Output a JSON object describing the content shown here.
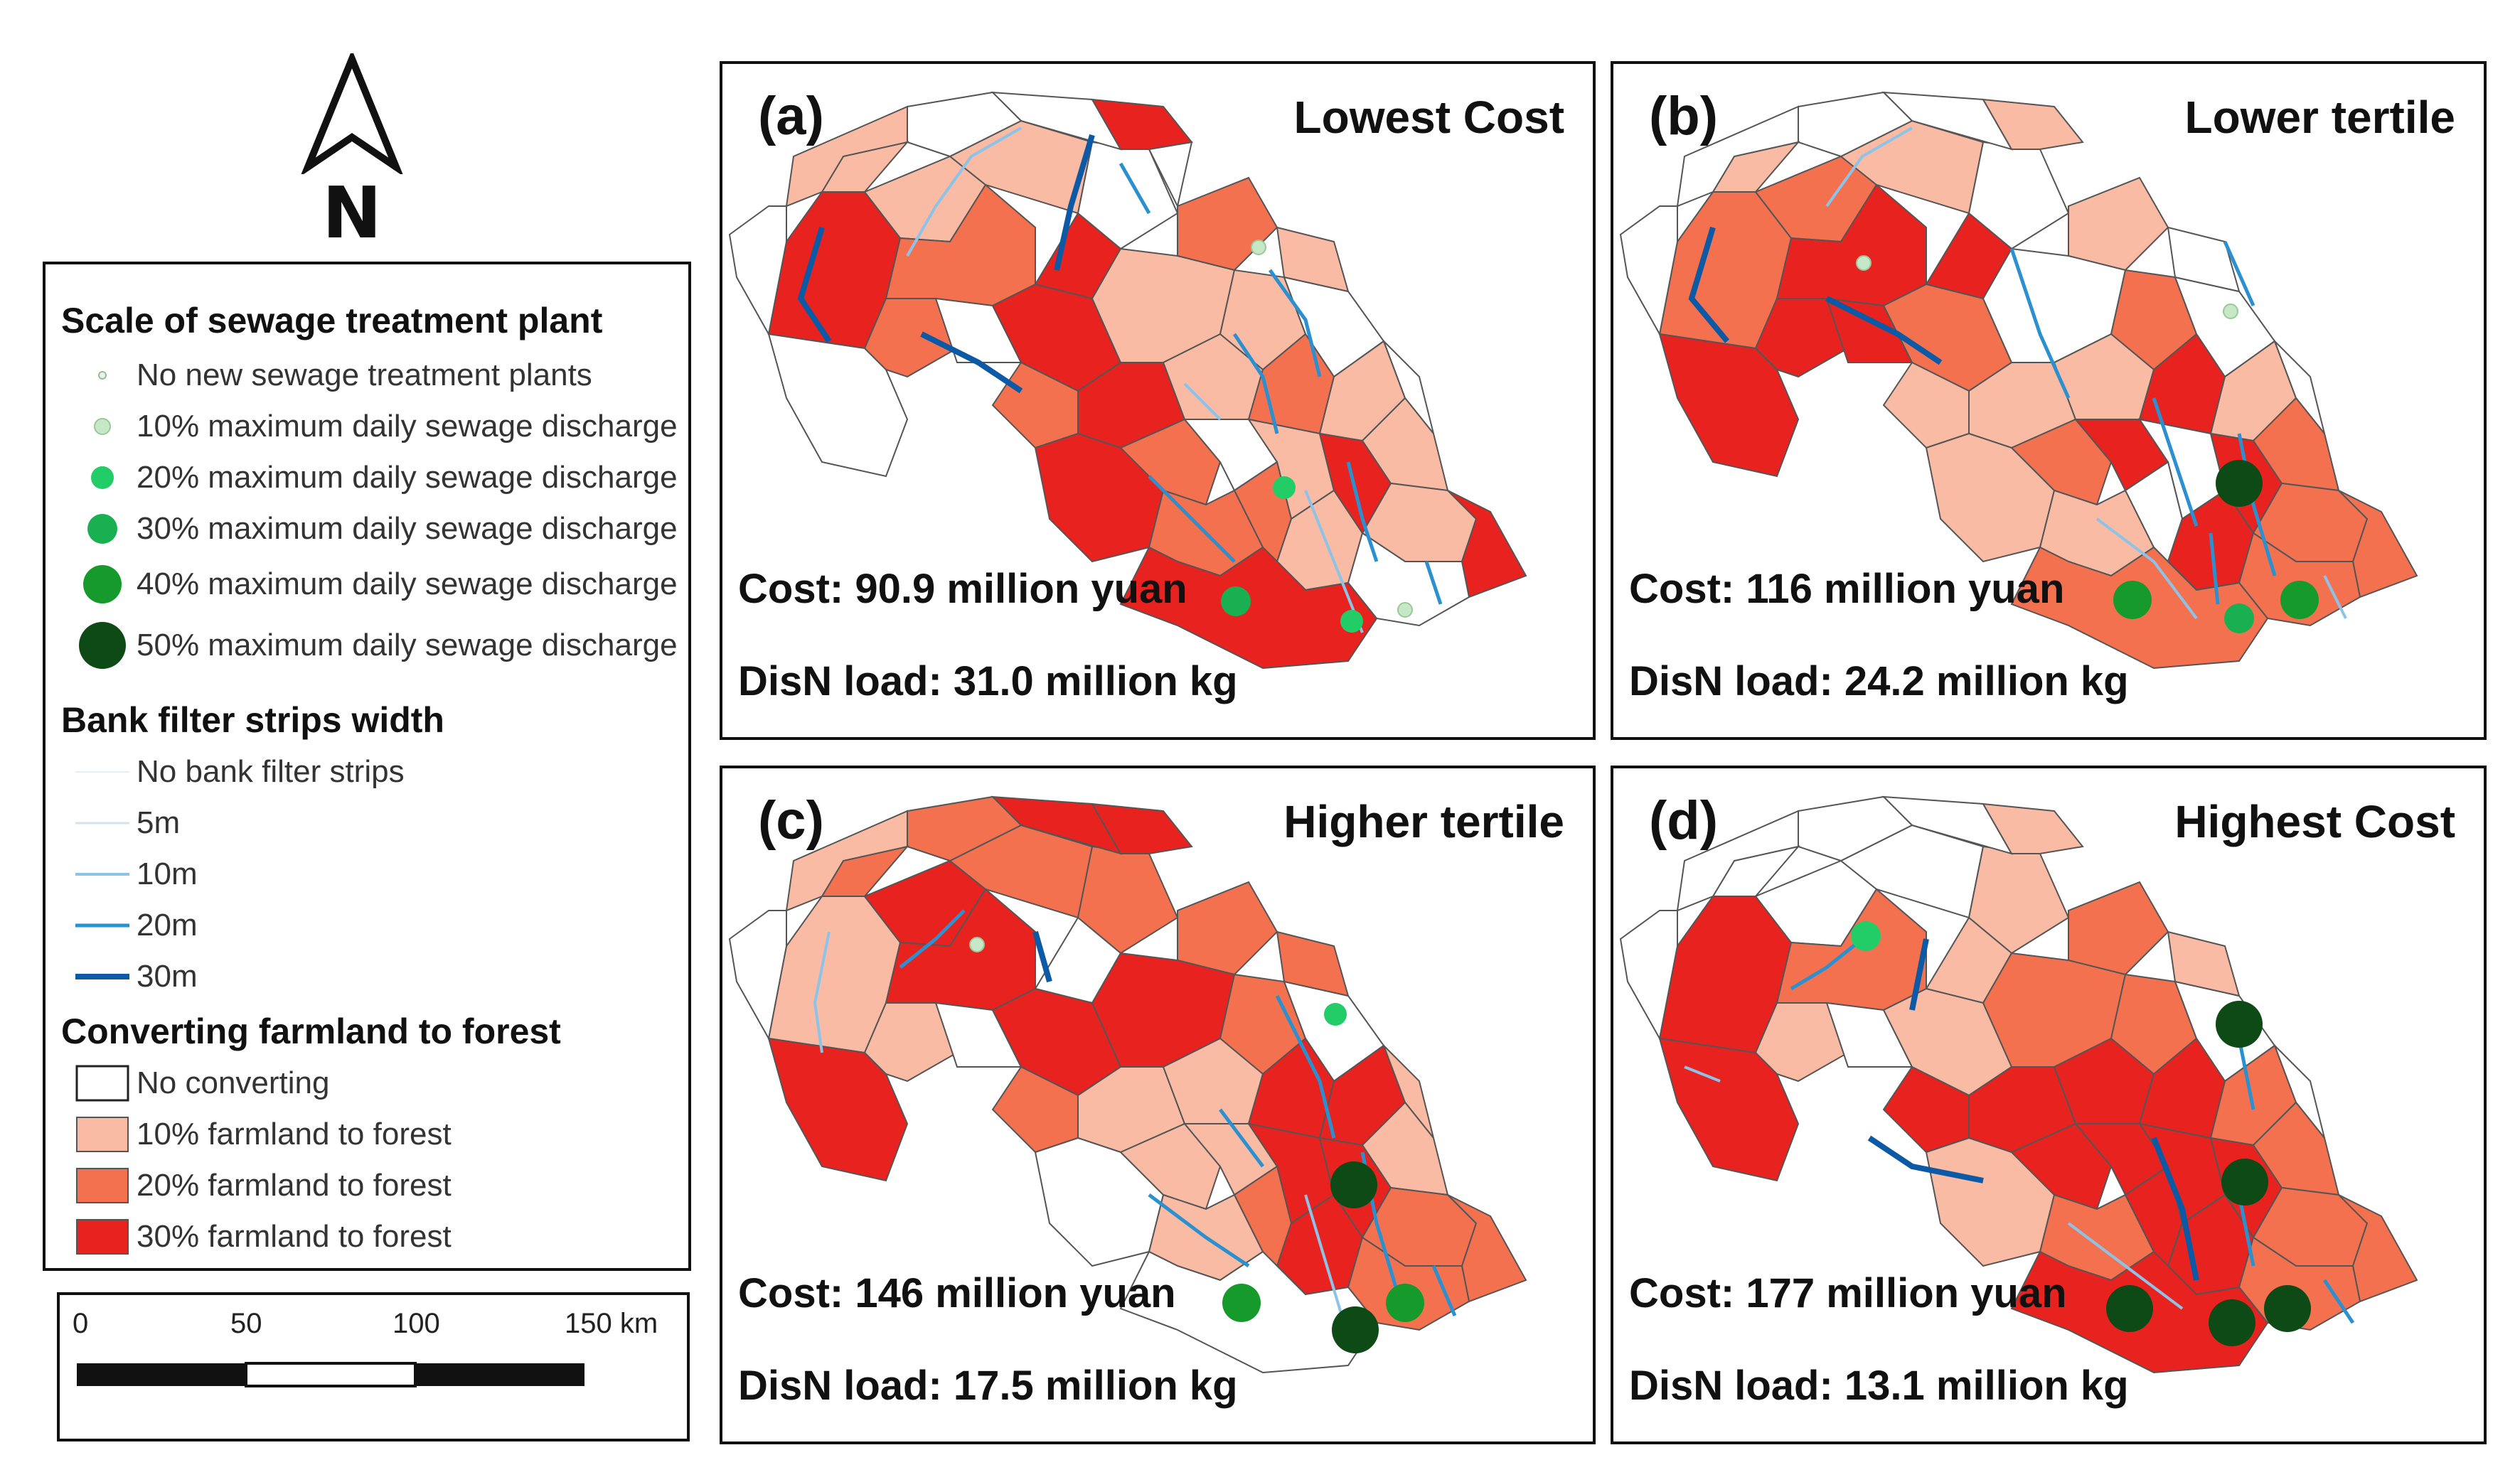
{
  "north_arrow": {
    "label": "N"
  },
  "legend": {
    "stp_title": "Scale of sewage treatment plant",
    "stp_items": [
      {
        "label": "No new sewage treatment plants",
        "color": "#e8f5e8"
      },
      {
        "label": "10% maximum daily sewage discharge",
        "color": "#c6e8c6"
      },
      {
        "label": "20% maximum daily sewage discharge",
        "color": "#22cc66"
      },
      {
        "label": "30% maximum daily sewage discharge",
        "color": "#18b050"
      },
      {
        "label": "40% maximum daily sewage discharge",
        "color": "#169a2c"
      },
      {
        "label": "50% maximum daily sewage discharge",
        "color": "#0d4a16"
      }
    ],
    "bfs_title": "Bank filter strips width",
    "bfs_items": [
      {
        "label": "No bank filter strips",
        "color": "#f1f6fb"
      },
      {
        "label": "5m",
        "color": "#cfe3f3"
      },
      {
        "label": "10m",
        "color": "#8cc3e8"
      },
      {
        "label": "20m",
        "color": "#2a90d0"
      },
      {
        "label": "30m",
        "color": "#0c5aa6"
      }
    ],
    "conv_title": "Converting farmland to forest",
    "conv_items": [
      {
        "label": "No converting",
        "color": "#ffffff"
      },
      {
        "label": "10% farmland to forest",
        "color": "#f9bba4"
      },
      {
        "label": "20% farmland to forest",
        "color": "#f47150"
      },
      {
        "label": "30% farmland to forest",
        "color": "#e8221f"
      }
    ]
  },
  "scale_bar": {
    "ticks": [
      "0",
      "50",
      "100",
      "150 km"
    ]
  },
  "panels": [
    {
      "letter": "(a)",
      "title": "Lowest Cost",
      "cost": "Cost: 90.9 million yuan",
      "load": "DisN load: 31.0 million kg"
    },
    {
      "letter": "(b)",
      "title": "Lower tertile",
      "cost": "Cost: 116 million yuan",
      "load": "DisN load: 24.2 million kg"
    },
    {
      "letter": "(c)",
      "title": "Higher tertile",
      "cost": "Cost: 146 million yuan",
      "load": "DisN load: 17.5 million kg"
    },
    {
      "letter": "(d)",
      "title": "Highest Cost",
      "cost": "Cost: 177 million yuan",
      "load": "DisN load: 13.1 million kg"
    }
  ]
}
